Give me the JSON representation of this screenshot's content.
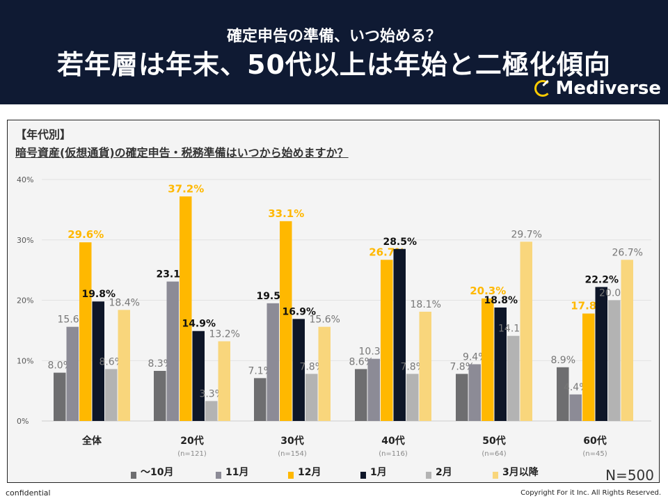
{
  "header": {
    "subtitle": "確定申告の準備、いつ始める？",
    "title": "若年層は年末、50代以上は年始と二極化傾向",
    "logo": "Mediverse"
  },
  "question": {
    "segment": "【年代別】",
    "text": "暗号資産(仮想通貨)の確定申告・税務準備はいつから始めますか？"
  },
  "footer": {
    "left": "confidential",
    "right": "Copyright For it Inc. All Rights Reserved."
  },
  "chart_data": {
    "type": "bar",
    "categories": [
      "全体",
      "20代",
      "30代",
      "40代",
      "50代",
      "60代"
    ],
    "category_notes": [
      "",
      "(n=121)",
      "(n=154)",
      "(n=116)",
      "(n=64)",
      "(n=45)"
    ],
    "ylim": [
      0,
      40
    ],
    "yticks": [
      "0%",
      "10%",
      "20%",
      "30%",
      "40%"
    ],
    "grid": true,
    "legend_position": "bottom",
    "total_n": "N=500",
    "series": [
      {
        "name": "～10月",
        "color": "#6e6e70",
        "values": [
          8.0,
          8.3,
          7.1,
          8.6,
          7.8,
          8.9
        ]
      },
      {
        "name": "11月",
        "color": "#8c8b96",
        "values": [
          15.6,
          23.1,
          19.5,
          10.3,
          9.4,
          4.4
        ]
      },
      {
        "name": "12月",
        "color": "#ffb800",
        "values": [
          29.6,
          37.2,
          33.1,
          26.7,
          20.3,
          17.8
        ]
      },
      {
        "name": "1月",
        "color": "#0e1628",
        "values": [
          19.8,
          14.9,
          16.9,
          28.5,
          18.8,
          22.2
        ]
      },
      {
        "name": "2月",
        "color": "#b3b3b3",
        "values": [
          8.6,
          3.3,
          7.8,
          7.8,
          14.1,
          20.0
        ]
      },
      {
        "name": "3月以降",
        "color": "#f9d67c",
        "values": [
          18.4,
          13.2,
          15.6,
          18.1,
          29.7,
          26.7
        ]
      }
    ]
  }
}
